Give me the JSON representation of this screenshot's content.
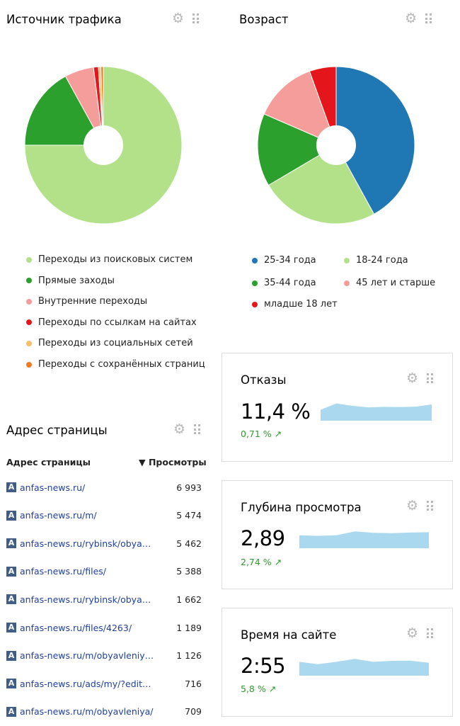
{
  "traffic": {
    "title": "Источник трафика",
    "legend": [
      {
        "label": "Переходы из поисковых систем",
        "color": "#b2e18a"
      },
      {
        "label": "Прямые заходы",
        "color": "#2ca02c"
      },
      {
        "label": "Внутренние переходы",
        "color": "#f59d9a"
      },
      {
        "label": "Переходы по ссылкам на сайтах",
        "color": "#e5161b"
      },
      {
        "label": "Переходы из социальных сетей",
        "color": "#f9c06b"
      },
      {
        "label": "Переходы с сохранённых страниц",
        "color": "#f47a1f"
      }
    ],
    "shares": [
      0.75,
      0.17,
      0.06,
      0.01,
      0.005,
      0.005
    ]
  },
  "age": {
    "title": "Возраст",
    "legend": [
      {
        "label": "25-34 года",
        "color": "#1f77b4"
      },
      {
        "label": "18-24 года",
        "color": "#b2e18a"
      },
      {
        "label": "35-44 года",
        "color": "#2ca02c"
      },
      {
        "label": "45 лет и старше",
        "color": "#f59d9a"
      },
      {
        "label": "младше 18 лет",
        "color": "#e5161b"
      }
    ],
    "shares": [
      0.42,
      0.245,
      0.15,
      0.13,
      0.055
    ]
  },
  "pages": {
    "title": "Адрес страницы",
    "col_address": "Адрес страницы",
    "col_views": "▼ Просмотры",
    "favicon_letter": "A",
    "rows": [
      {
        "url": "anfas-news.ru/",
        "views": "6 993"
      },
      {
        "url": "anfas-news.ru/m/",
        "views": "5 474"
      },
      {
        "url": "anfas-news.ru/rybinsk/obya…",
        "views": "5 462"
      },
      {
        "url": "anfas-news.ru/files/",
        "views": "5 388"
      },
      {
        "url": "anfas-news.ru/rybinsk/obya…",
        "views": "1 662"
      },
      {
        "url": "anfas-news.ru/files/4263/",
        "views": "1 189"
      },
      {
        "url": "anfas-news.ru/m/obyavleniy…",
        "views": "1 126"
      },
      {
        "url": "anfas-news.ru/ads/my/?edit…",
        "views": "716"
      },
      {
        "url": "anfas-news.ru/m/obyavleniya/",
        "views": "709"
      }
    ]
  },
  "metrics": [
    {
      "title": "Отказы",
      "value": "11,4 %",
      "delta": "0,71 % ↗",
      "trend": [
        0.3,
        0.95,
        0.7,
        0.55,
        0.6,
        0.58,
        0.62,
        0.85
      ]
    },
    {
      "title": "Глубина просмотра",
      "value": "2,89",
      "delta": "2,74 % ↗",
      "trend": [
        0.5,
        0.45,
        0.5,
        0.9,
        0.75,
        0.72,
        0.78,
        0.82
      ]
    },
    {
      "title": "Время на сайте",
      "value": "2:55",
      "delta": "5,8 % ↗",
      "trend": [
        0.6,
        0.35,
        0.6,
        0.9,
        0.6,
        0.7,
        0.72,
        0.5
      ]
    }
  ],
  "icons": {
    "gear": "gear-icon",
    "grip": "drag-handle-icon"
  }
}
